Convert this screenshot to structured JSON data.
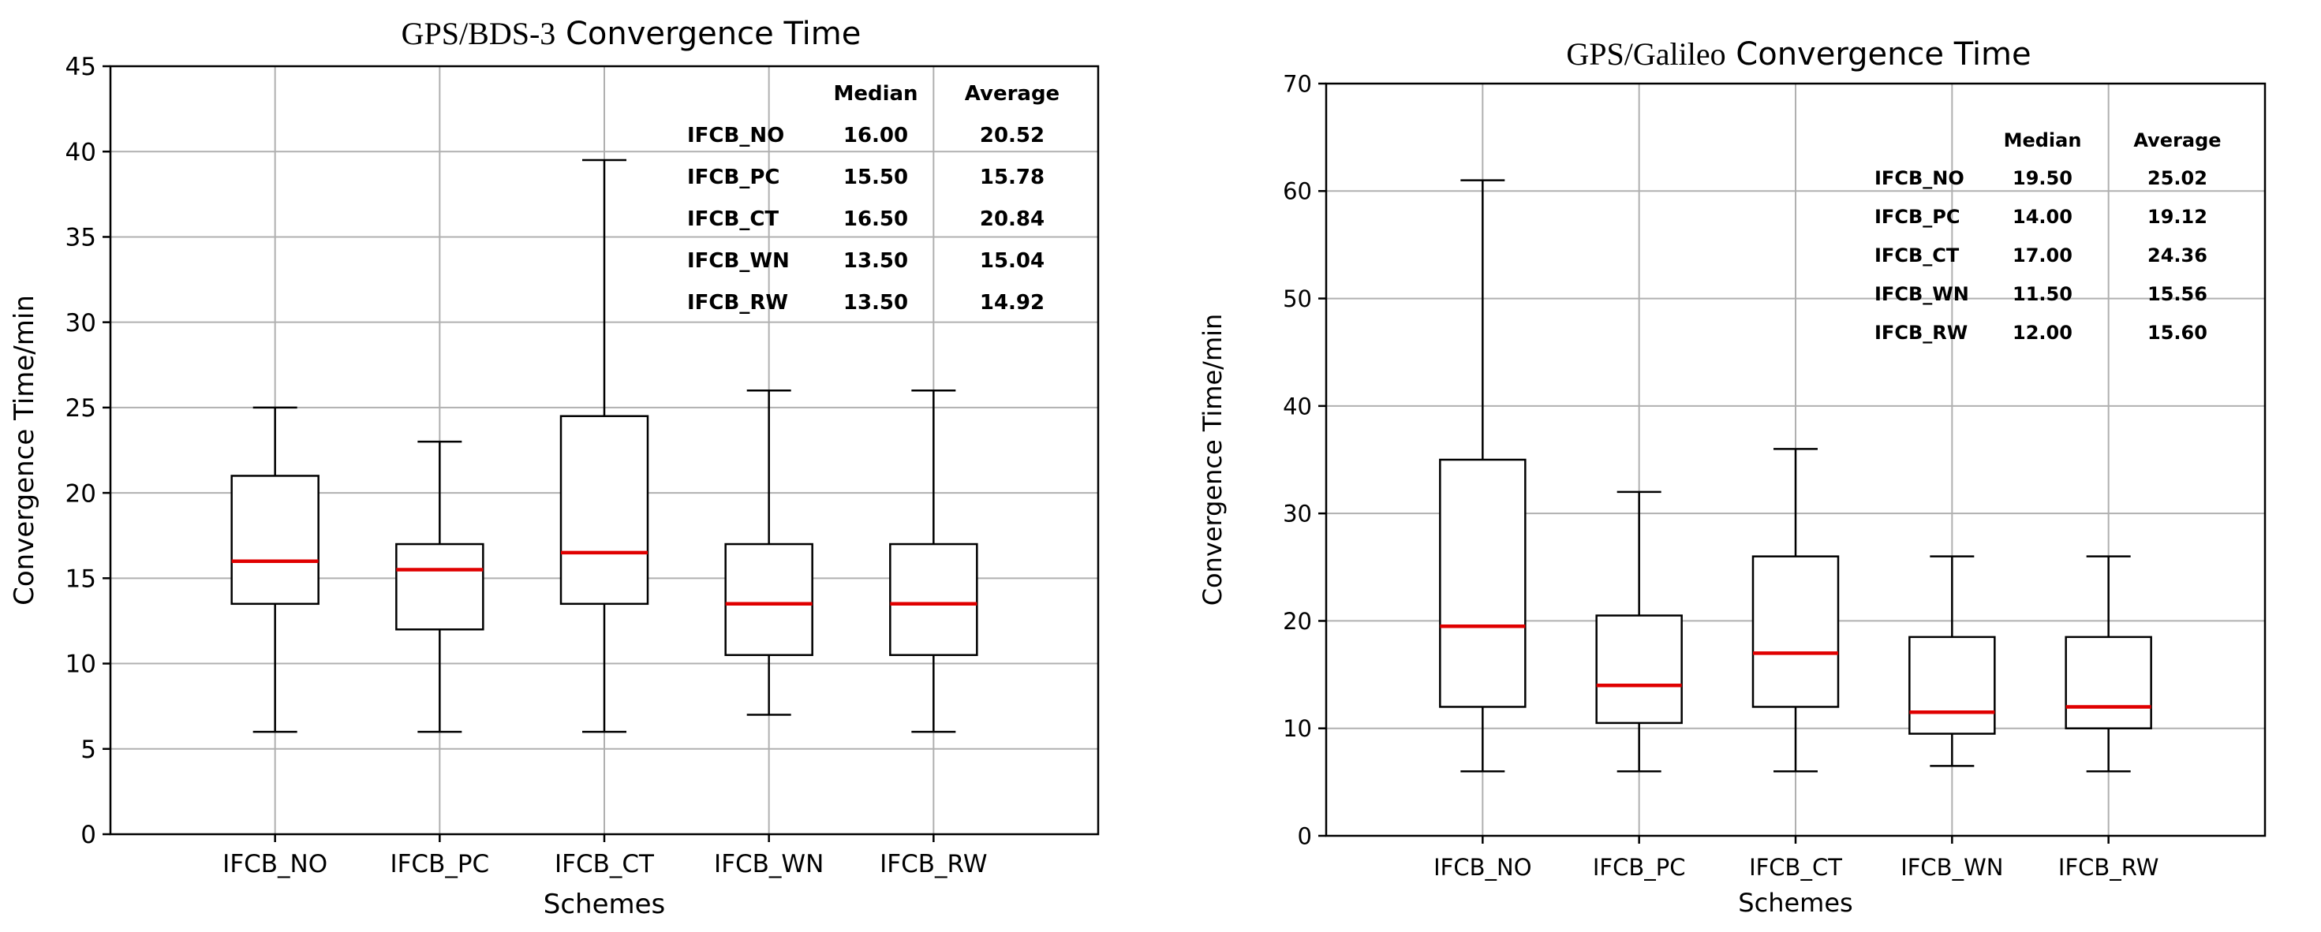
{
  "chart_data": [
    {
      "type": "box",
      "title_main": "GPS/BDS-3",
      "title_rest": " Convergence Time",
      "xlabel": "Schemes",
      "ylabel": "Convergence Time/min",
      "ylim": [
        0,
        45
      ],
      "yticks": [
        0,
        5,
        10,
        15,
        20,
        25,
        30,
        35,
        40,
        45
      ],
      "grid": true,
      "categories": [
        "IFCB_NO",
        "IFCB_PC",
        "IFCB_CT",
        "IFCB_WN",
        "IFCB_RW"
      ],
      "boxes": [
        {
          "whisker_low": 6,
          "q1": 13.5,
          "median": 16,
          "q3": 21,
          "whisker_high": 25
        },
        {
          "whisker_low": 6,
          "q1": 12,
          "median": 15.5,
          "q3": 17,
          "whisker_high": 23
        },
        {
          "whisker_low": 6,
          "q1": 13.5,
          "median": 16.5,
          "q3": 24.5,
          "whisker_high": 39.5
        },
        {
          "whisker_low": 7,
          "q1": 10.5,
          "median": 13.5,
          "q3": 17,
          "whisker_high": 26
        },
        {
          "whisker_low": 6,
          "q1": 10.5,
          "median": 13.5,
          "q3": 17,
          "whisker_high": 26
        }
      ],
      "stats_table": {
        "headers": [
          "Median",
          "Average"
        ],
        "rows": [
          {
            "label": "IFCB_NO",
            "median": "16.00",
            "average": "20.52"
          },
          {
            "label": "IFCB_PC",
            "median": "15.50",
            "average": "15.78"
          },
          {
            "label": "IFCB_CT",
            "median": "16.50",
            "average": "20.84"
          },
          {
            "label": "IFCB_WN",
            "median": "13.50",
            "average": "15.04"
          },
          {
            "label": "IFCB_RW",
            "median": "13.50",
            "average": "14.92"
          }
        ]
      }
    },
    {
      "type": "box",
      "title_main": "GPS/Galileo",
      "title_rest": " Convergence Time",
      "xlabel": "Schemes",
      "ylabel": "Convergence Time/min",
      "ylim": [
        0,
        70
      ],
      "yticks": [
        0,
        10,
        20,
        30,
        40,
        50,
        60,
        70
      ],
      "grid": true,
      "categories": [
        "IFCB_NO",
        "IFCB_PC",
        "IFCB_CT",
        "IFCB_WN",
        "IFCB_RW"
      ],
      "boxes": [
        {
          "whisker_low": 6,
          "q1": 12,
          "median": 19.5,
          "q3": 35,
          "whisker_high": 61
        },
        {
          "whisker_low": 6,
          "q1": 10.5,
          "median": 14,
          "q3": 20.5,
          "whisker_high": 32
        },
        {
          "whisker_low": 6,
          "q1": 12,
          "median": 17,
          "q3": 26,
          "whisker_high": 36
        },
        {
          "whisker_low": 6.5,
          "q1": 9.5,
          "median": 11.5,
          "q3": 18.5,
          "whisker_high": 26
        },
        {
          "whisker_low": 6,
          "q1": 10,
          "median": 12,
          "q3": 18.5,
          "whisker_high": 26
        }
      ],
      "stats_table": {
        "headers": [
          "Median",
          "Average"
        ],
        "rows": [
          {
            "label": "IFCB_NO",
            "median": "19.50",
            "average": "25.02"
          },
          {
            "label": "IFCB_PC",
            "median": "14.00",
            "average": "19.12"
          },
          {
            "label": "IFCB_CT",
            "median": "17.00",
            "average": "24.36"
          },
          {
            "label": "IFCB_WN",
            "median": "11.50",
            "average": "15.56"
          },
          {
            "label": "IFCB_RW",
            "median": "12.00",
            "average": "15.60"
          }
        ]
      }
    }
  ],
  "colors": {
    "median": "#e00000",
    "box": "#000000",
    "grid": "#b0b0b0",
    "text": "#000000"
  }
}
